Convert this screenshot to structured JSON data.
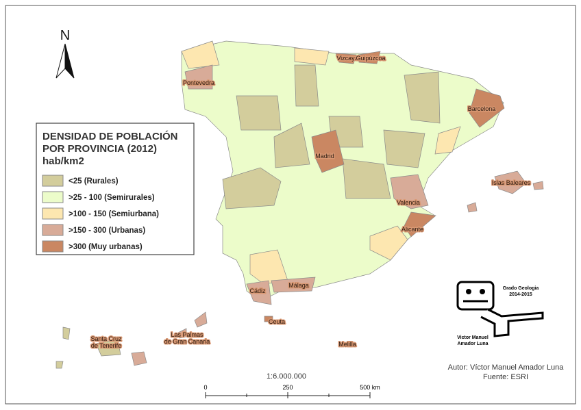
{
  "north": "N",
  "legend": {
    "title": [
      "DENSIDAD DE POBLACIÓN",
      "POR PROVINCIA (2012)"
    ],
    "unit": "hab/km2",
    "items": [
      {
        "label": "<25 (Rurales)",
        "color": "#d3cd9c"
      },
      {
        "label": ">25  - 100 (Semirurales)",
        "color": "#ecfcca"
      },
      {
        "label": ">100 - 150 (Semiurbana)",
        "color": "#fde7b0"
      },
      {
        "label": ">150 - 300 (Urbanas)",
        "color": "#d8ab98"
      },
      {
        "label": ">300 (Muy urbanas)",
        "color": "#ca8762"
      }
    ]
  },
  "places": [
    [
      "Vizcaya"
    ],
    [
      "Guipúzcoa"
    ],
    [
      "Pontevedra"
    ],
    [
      "Barcelona"
    ],
    [
      "Madrid"
    ],
    [
      "Islas Baleares"
    ],
    [
      "Valencia"
    ],
    [
      "Alicante"
    ],
    [
      "Málaga"
    ],
    [
      "Cádiz"
    ],
    [
      "Ceuta"
    ],
    [
      "Santa Cruz",
      "de Tenerife"
    ],
    [
      "Las Palmas",
      "de Gran Canaria"
    ],
    [
      "Melilla"
    ]
  ],
  "scale": "1:6.000.000",
  "scale_bar": [
    "0",
    "250",
    "500 km"
  ],
  "credits": [
    "Autor: Víctor Manuel Amador Luna",
    "Fuente: ESRI"
  ],
  "logo": [
    "Grado Geologia",
    "2014-2015",
    "Victor Manuel",
    "Amador Luna"
  ]
}
